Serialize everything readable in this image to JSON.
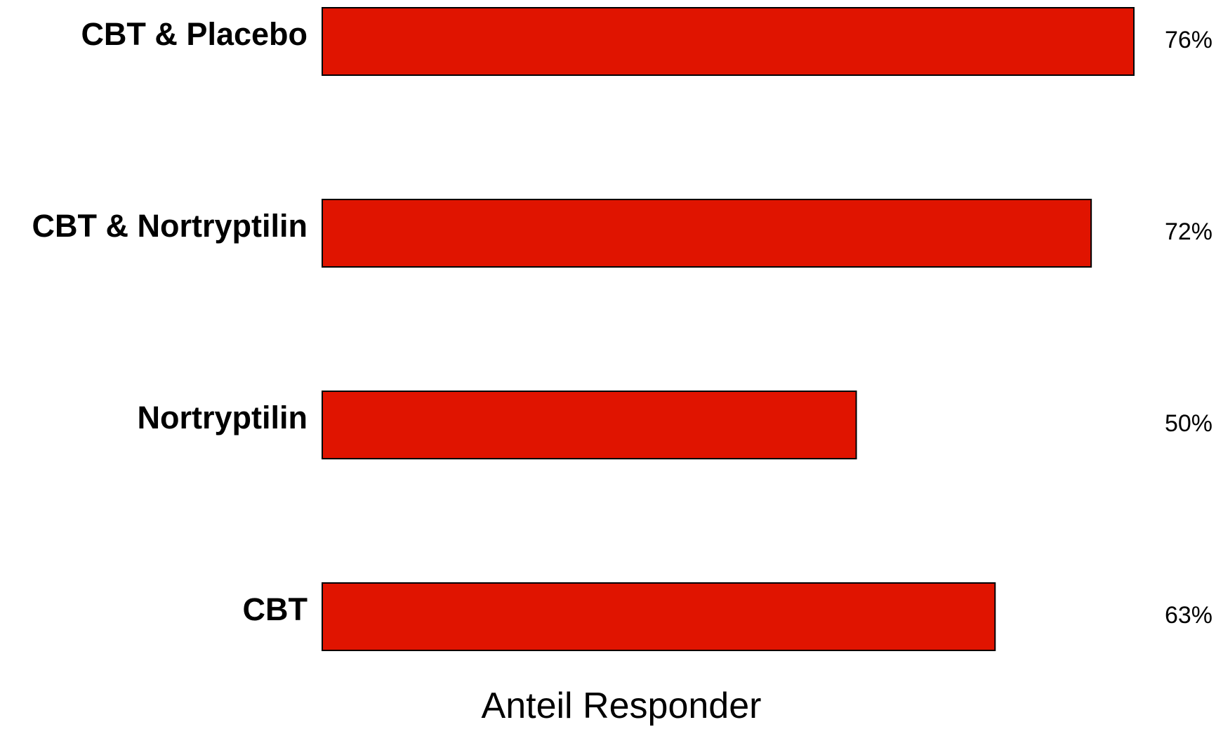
{
  "chart_data": {
    "type": "bar",
    "orientation": "horizontal",
    "categories": [
      "CBT & Placebo",
      "CBT & Nortryptilin",
      "Nortryptilin",
      "CBT"
    ],
    "values": [
      76,
      72,
      50,
      63
    ],
    "value_labels": [
      "76%",
      "72%",
      "50%",
      "63%"
    ],
    "unit": "%",
    "xlabel": "Anteil Responder",
    "xlim": [
      0,
      76
    ],
    "grid": false,
    "legend": "none",
    "bar_color": "#E01400",
    "bar_outline_color": "#000000"
  }
}
